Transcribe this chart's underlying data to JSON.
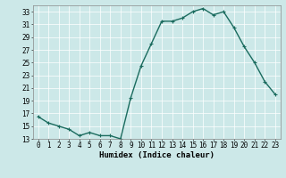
{
  "title": "",
  "xlabel": "Humidex (Indice chaleur)",
  "x": [
    0,
    1,
    2,
    3,
    4,
    5,
    6,
    7,
    8,
    9,
    10,
    11,
    12,
    13,
    14,
    15,
    16,
    17,
    18,
    19,
    20,
    21,
    22,
    23
  ],
  "y": [
    16.5,
    15.5,
    15,
    14.5,
    13.5,
    14,
    13.5,
    13.5,
    13,
    19.5,
    24.5,
    28,
    31.5,
    31.5,
    32,
    33,
    33.5,
    32.5,
    33,
    30.5,
    27.5,
    25,
    22,
    20
  ],
  "line_color": "#1a6b5e",
  "marker": "+",
  "marker_size": 3,
  "bg_color": "#cce8e8",
  "grid_color": "#ffffff",
  "ylim": [
    13,
    34
  ],
  "yticks": [
    13,
    15,
    17,
    19,
    21,
    23,
    25,
    27,
    29,
    31,
    33
  ],
  "xticks": [
    0,
    1,
    2,
    3,
    4,
    5,
    6,
    7,
    8,
    9,
    10,
    11,
    12,
    13,
    14,
    15,
    16,
    17,
    18,
    19,
    20,
    21,
    22,
    23
  ],
  "tick_fontsize": 5.5,
  "xlabel_fontsize": 6.5,
  "line_width": 1.0,
  "marker_color": "#1a6b5e",
  "spine_color": "#888888"
}
